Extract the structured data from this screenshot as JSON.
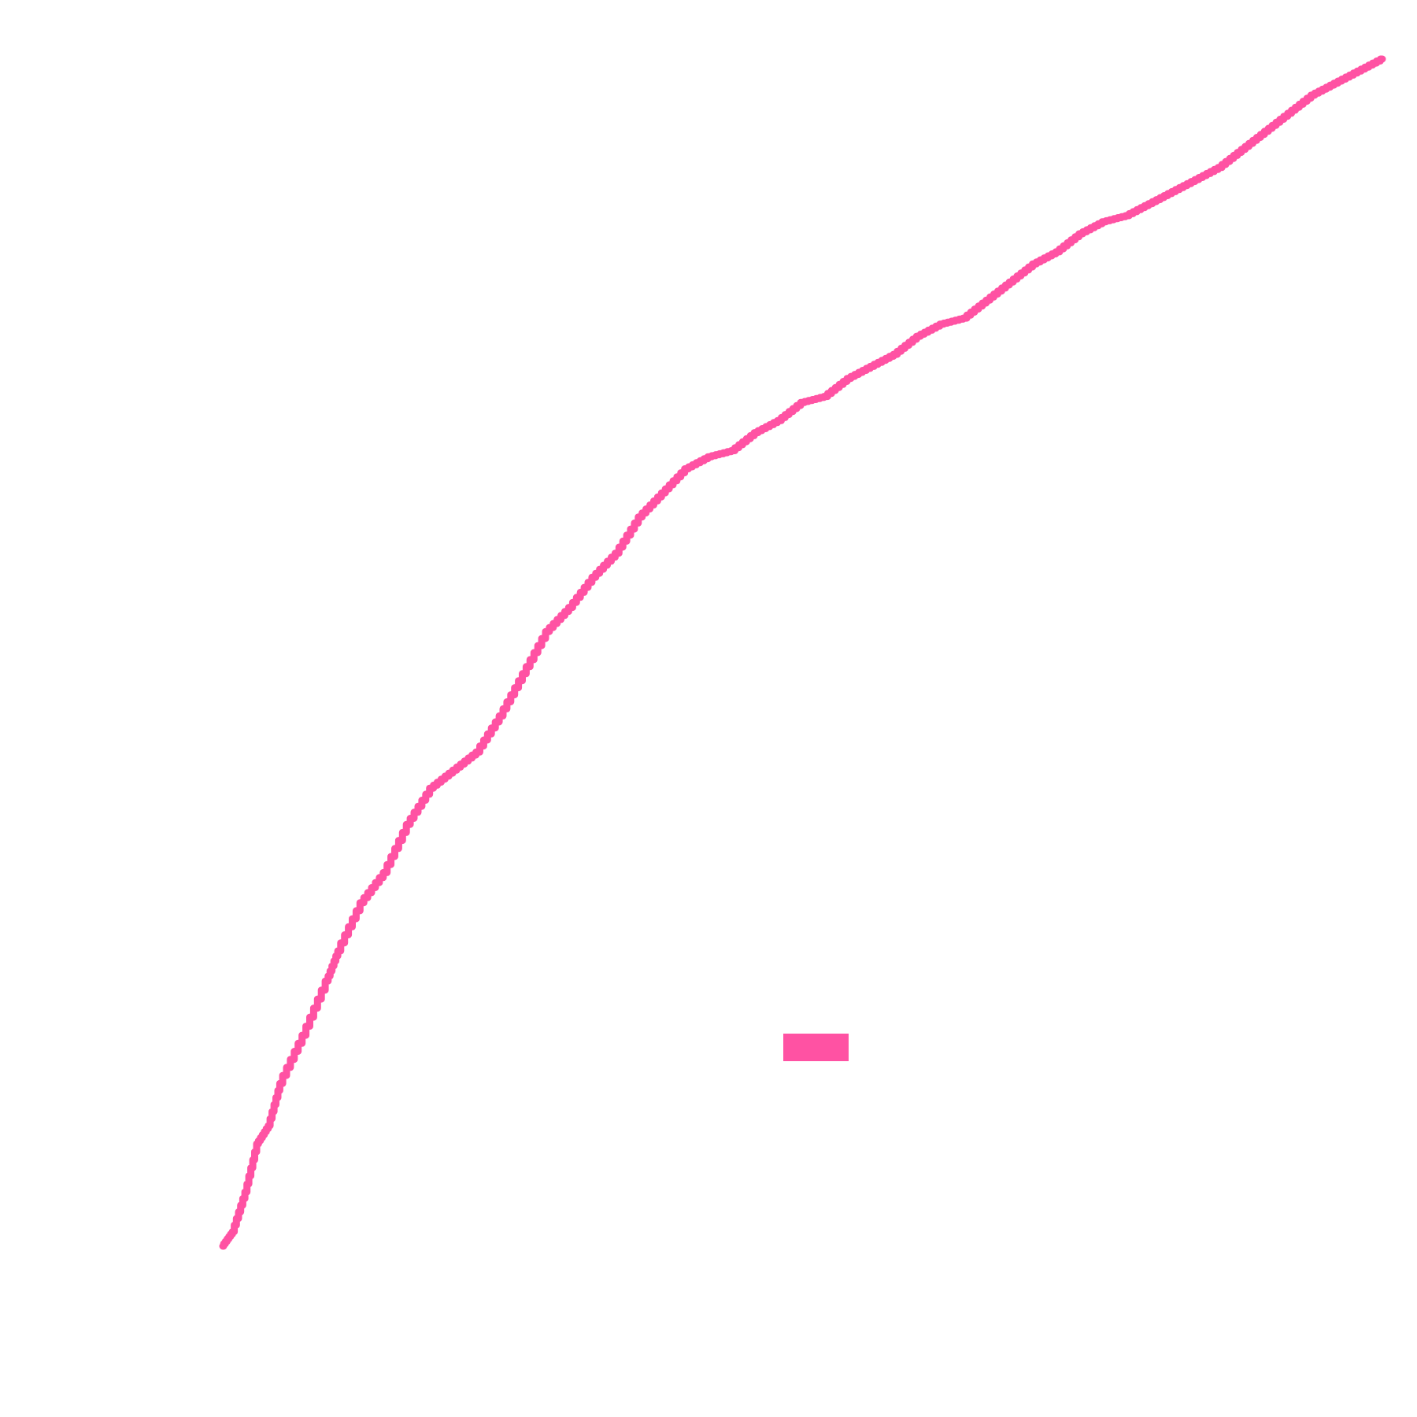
{
  "chart_data": {
    "type": "line",
    "title": "",
    "xlabel": "",
    "ylabel": "",
    "axes_visible": false,
    "grid": false,
    "xlim": [
      0,
      1
    ],
    "ylim": [
      0,
      1
    ],
    "legend": {
      "placement": "center-right",
      "entries": [
        {
          "color": "#ff52a3"
        }
      ]
    },
    "series": [
      {
        "color": "#ff52a3",
        "x": [
          0.0,
          0.009,
          0.02,
          0.03,
          0.04,
          0.05,
          0.07,
          0.09,
          0.1,
          0.12,
          0.14,
          0.16,
          0.18,
          0.2,
          0.22,
          0.24,
          0.26,
          0.28,
          0.3,
          0.32,
          0.34,
          0.36,
          0.38,
          0.4,
          0.42,
          0.44,
          0.46,
          0.48,
          0.5,
          0.52,
          0.54,
          0.56,
          0.58,
          0.6,
          0.62,
          0.64,
          0.66,
          0.68,
          0.7,
          0.72,
          0.74,
          0.76,
          0.78,
          0.8,
          0.82,
          0.84,
          0.86,
          0.88,
          0.9,
          0.92,
          0.94,
          0.96,
          0.98,
          1.0
        ],
        "y": [
          0.0,
          0.012,
          0.045,
          0.085,
          0.1,
          0.135,
          0.175,
          0.22,
          0.245,
          0.285,
          0.31,
          0.35,
          0.38,
          0.395,
          0.41,
          0.44,
          0.475,
          0.51,
          0.53,
          0.555,
          0.575,
          0.605,
          0.625,
          0.645,
          0.655,
          0.66,
          0.675,
          0.685,
          0.7,
          0.705,
          0.72,
          0.73,
          0.74,
          0.755,
          0.765,
          0.77,
          0.785,
          0.8,
          0.815,
          0.825,
          0.84,
          0.85,
          0.855,
          0.865,
          0.875,
          0.885,
          0.895,
          0.91,
          0.925,
          0.94,
          0.955,
          0.965,
          0.975,
          0.985
        ]
      }
    ]
  }
}
